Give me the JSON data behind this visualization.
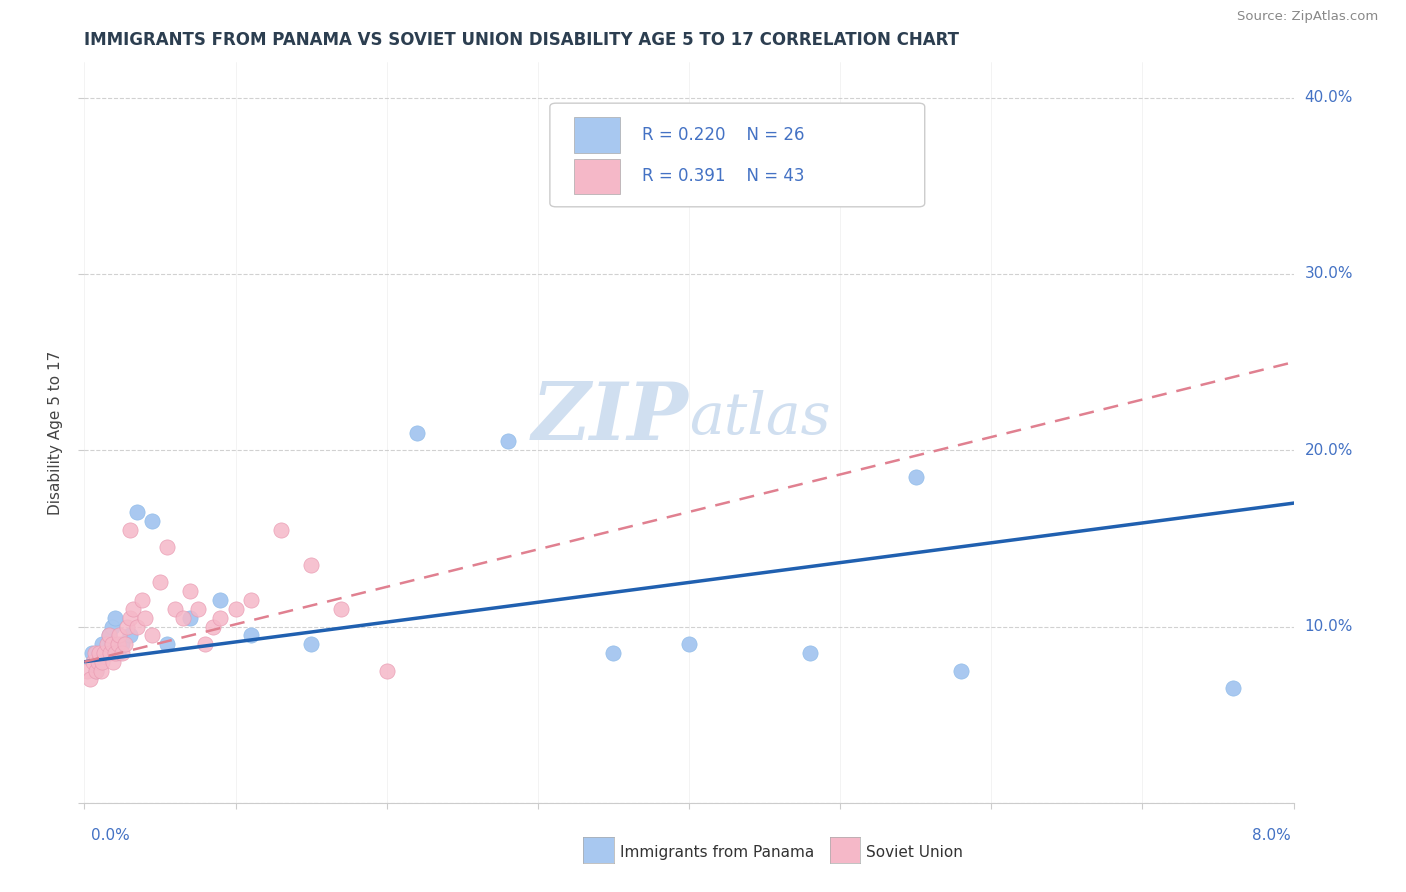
{
  "title": "IMMIGRANTS FROM PANAMA VS SOVIET UNION DISABILITY AGE 5 TO 17 CORRELATION CHART",
  "source": "Source: ZipAtlas.com",
  "ylabel": "Disability Age 5 to 17",
  "xlim": [
    0.0,
    8.0
  ],
  "ylim": [
    0.0,
    42.0
  ],
  "legend_r1": "R = 0.220",
  "legend_n1": "N = 26",
  "legend_r2": "R = 0.391",
  "legend_n2": "N = 43",
  "legend_label1": "Immigrants from Panama",
  "legend_label2": "Soviet Union",
  "panama_color": "#a8c8f0",
  "soviet_color": "#f5b8c8",
  "panama_line_color": "#2060b0",
  "soviet_line_color": "#e08090",
  "text_color": "#4472c4",
  "watermark_color": "#d0dff0",
  "panama_x": [
    0.05,
    0.08,
    0.1,
    0.12,
    0.14,
    0.16,
    0.18,
    0.2,
    0.22,
    0.25,
    0.3,
    0.35,
    0.45,
    0.55,
    0.7,
    0.9,
    1.1,
    1.5,
    2.2,
    2.8,
    3.5,
    4.0,
    4.8,
    5.5,
    5.8,
    7.6
  ],
  "panama_y": [
    8.5,
    7.5,
    8.0,
    9.0,
    8.5,
    9.5,
    10.0,
    10.5,
    8.5,
    9.0,
    9.5,
    16.5,
    16.0,
    9.0,
    10.5,
    11.5,
    9.5,
    9.0,
    21.0,
    20.5,
    8.5,
    9.0,
    8.5,
    18.5,
    7.5,
    6.5
  ],
  "soviet_x": [
    0.02,
    0.04,
    0.06,
    0.07,
    0.08,
    0.09,
    0.1,
    0.11,
    0.12,
    0.13,
    0.15,
    0.16,
    0.17,
    0.18,
    0.19,
    0.2,
    0.22,
    0.23,
    0.25,
    0.27,
    0.28,
    0.3,
    0.32,
    0.35,
    0.38,
    0.4,
    0.45,
    0.5,
    0.55,
    0.6,
    0.65,
    0.7,
    0.75,
    0.8,
    0.85,
    0.9,
    1.0,
    1.1,
    1.3,
    1.5,
    1.7,
    2.0,
    0.3
  ],
  "soviet_y": [
    7.5,
    7.0,
    8.0,
    8.5,
    7.5,
    8.0,
    8.5,
    7.5,
    8.0,
    8.5,
    9.0,
    9.5,
    8.5,
    9.0,
    8.0,
    8.5,
    9.0,
    9.5,
    8.5,
    9.0,
    10.0,
    10.5,
    11.0,
    10.0,
    11.5,
    10.5,
    9.5,
    12.5,
    14.5,
    11.0,
    10.5,
    12.0,
    11.0,
    9.0,
    10.0,
    10.5,
    11.0,
    11.5,
    15.5,
    13.5,
    11.0,
    7.5,
    15.5
  ]
}
